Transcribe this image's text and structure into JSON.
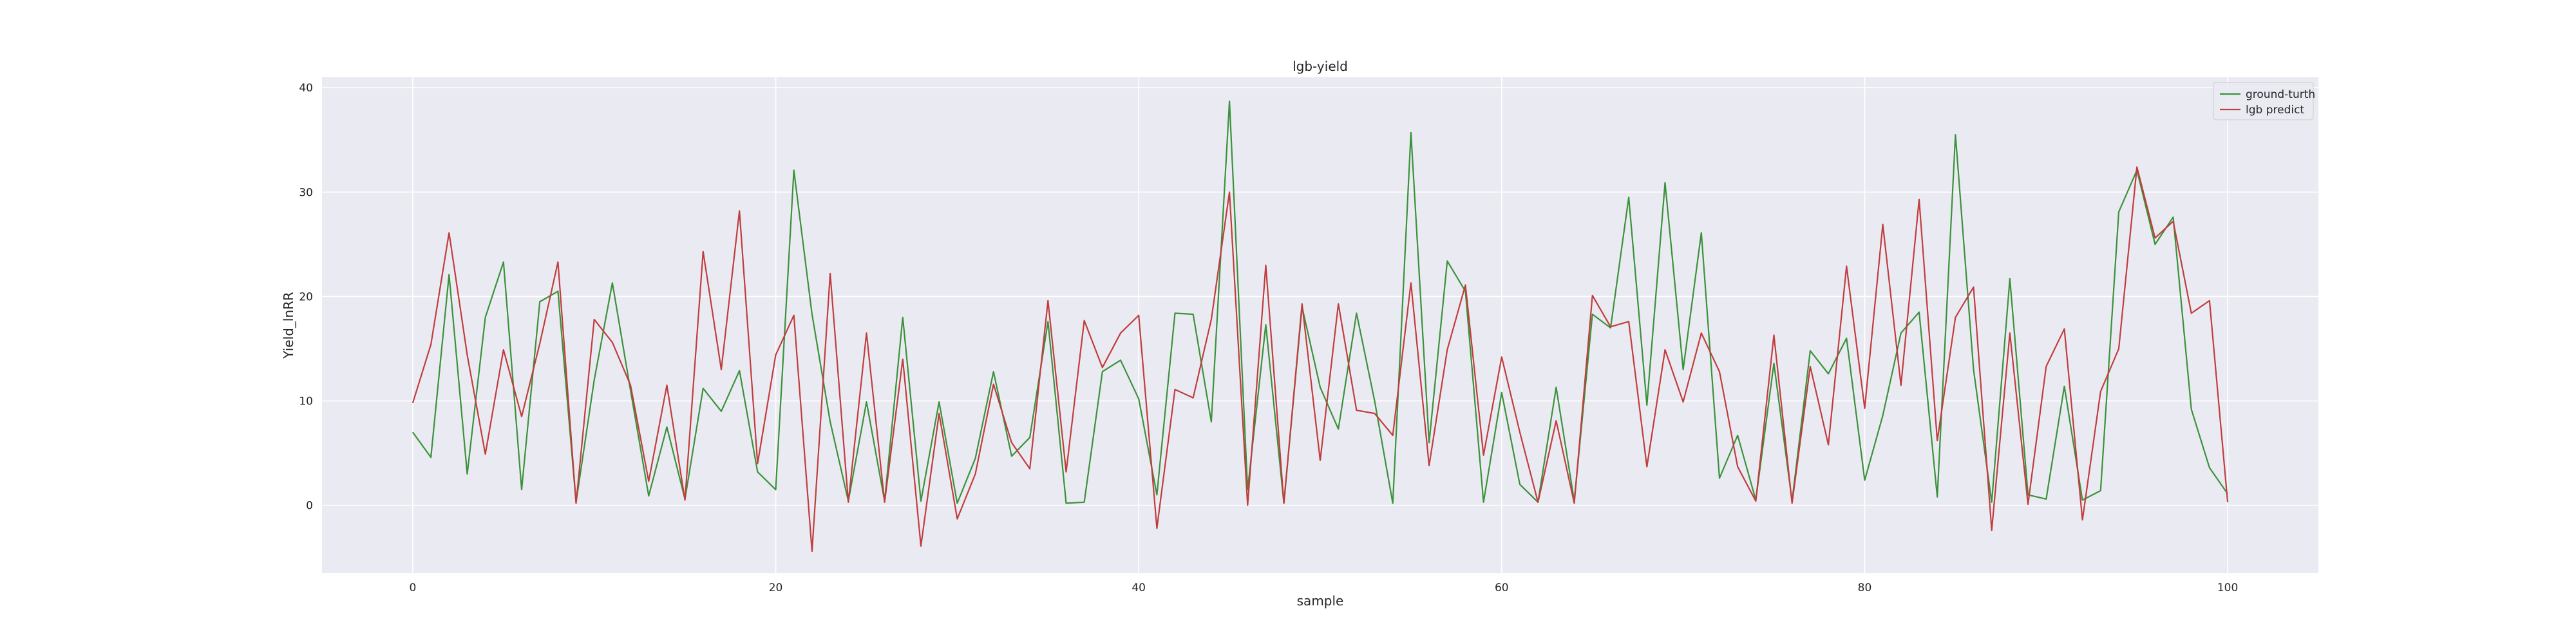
{
  "chart_data": {
    "type": "line",
    "title": "lgb-yield",
    "xlabel": "sample",
    "ylabel": "Yield_lnRR",
    "xlim": [
      -5,
      105
    ],
    "ylim": [
      -6.5,
      41
    ],
    "xticks": [
      0,
      20,
      40,
      60,
      80,
      100
    ],
    "yticks": [
      0,
      10,
      20,
      30,
      40
    ],
    "grid": true,
    "legend_position": "top-right",
    "x": [
      0,
      1,
      2,
      3,
      4,
      5,
      6,
      7,
      8,
      9,
      10,
      11,
      12,
      13,
      14,
      15,
      16,
      17,
      18,
      19,
      20,
      21,
      22,
      23,
      24,
      25,
      26,
      27,
      28,
      29,
      30,
      31,
      32,
      33,
      34,
      35,
      36,
      37,
      38,
      39,
      40,
      41,
      42,
      43,
      44,
      45,
      46,
      47,
      48,
      49,
      50,
      51,
      52,
      53,
      54,
      55,
      56,
      57,
      58,
      59,
      60,
      61,
      62,
      63,
      64,
      65,
      66,
      67,
      68,
      69,
      70,
      71,
      72,
      73,
      74,
      75,
      76,
      77,
      78,
      79,
      80,
      81,
      82,
      83,
      84,
      85,
      86,
      87,
      88,
      89,
      90,
      91,
      92,
      93,
      94,
      95,
      96,
      97,
      98,
      99,
      100
    ],
    "series": [
      {
        "name": "ground-turth",
        "color": "#3a923a",
        "values": [
          7.0,
          4.6,
          22.1,
          3.0,
          18.0,
          23.3,
          1.5,
          19.5,
          20.5,
          0.3,
          12.0,
          21.3,
          11.0,
          0.9,
          7.5,
          0.6,
          11.2,
          9.0,
          12.9,
          3.2,
          1.5,
          32.1,
          18.3,
          8.0,
          0.4,
          9.9,
          0.4,
          18.0,
          0.4,
          9.9,
          0.2,
          4.5,
          12.8,
          4.7,
          6.5,
          17.6,
          0.2,
          0.3,
          12.8,
          13.9,
          10.2,
          1.0,
          18.4,
          18.3,
          8.0,
          38.7,
          1.5,
          17.3,
          0.2,
          19.0,
          11.3,
          7.3,
          18.4,
          10.0,
          0.2,
          35.7,
          6.0,
          23.4,
          20.5,
          0.3,
          10.8,
          2.0,
          0.3,
          11.3,
          0.4,
          18.3,
          17.0,
          29.5,
          9.6,
          30.9,
          13.0,
          26.1,
          2.6,
          6.7,
          0.5,
          13.6,
          0.4,
          14.8,
          12.6,
          16.0,
          2.4,
          8.6,
          16.5,
          18.5,
          0.8,
          35.5,
          13.0,
          0.3,
          21.7,
          1.0,
          0.6,
          11.4,
          0.5,
          1.4,
          28.1,
          32.1,
          25.0,
          27.6,
          9.2,
          3.6,
          1.1
        ]
      },
      {
        "name": "lgb predict",
        "color": "#c03d3e",
        "values": [
          9.8,
          15.4,
          26.1,
          14.4,
          4.9,
          14.9,
          8.5,
          15.5,
          23.3,
          0.2,
          17.8,
          15.6,
          11.5,
          2.3,
          11.5,
          0.5,
          24.3,
          13.0,
          28.2,
          4.0,
          14.4,
          18.2,
          -4.4,
          22.2,
          0.3,
          16.5,
          0.3,
          14.0,
          -3.9,
          8.8,
          -1.3,
          3.0,
          11.6,
          6.0,
          3.5,
          19.6,
          3.2,
          17.7,
          13.2,
          16.5,
          18.2,
          -2.2,
          11.1,
          10.3,
          17.8,
          30.0,
          0.0,
          23.0,
          0.2,
          19.3,
          4.3,
          19.3,
          9.1,
          8.8,
          6.7,
          21.3,
          3.8,
          14.9,
          21.1,
          4.8,
          14.2,
          7.0,
          0.3,
          8.1,
          0.2,
          20.1,
          17.1,
          17.6,
          3.7,
          14.9,
          9.9,
          16.5,
          12.8,
          3.7,
          0.4,
          16.3,
          0.2,
          13.3,
          5.8,
          22.9,
          9.3,
          26.9,
          11.5,
          29.3,
          6.2,
          18.0,
          20.9,
          -2.4,
          16.5,
          0.1,
          13.3,
          16.9,
          -1.4,
          10.9,
          15.0,
          32.4,
          25.6,
          27.2,
          18.4,
          19.6,
          0.3
        ]
      }
    ]
  }
}
